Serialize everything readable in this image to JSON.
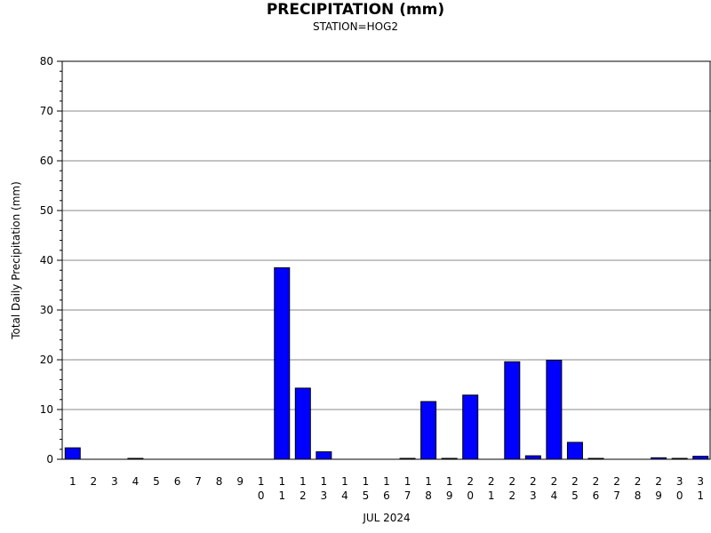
{
  "chart_data": {
    "type": "bar",
    "title": "PRECIPITATION (mm)",
    "subtitle": "STATION=HOG2",
    "xlabel": "JUL 2024",
    "ylabel": "Total Daily Precipitation (mm)",
    "ylim": [
      0,
      80
    ],
    "yticks": [
      0,
      10,
      20,
      30,
      40,
      50,
      60,
      70,
      80
    ],
    "grid": true,
    "bar_color": "#0000ff",
    "categories": [
      "1",
      "2",
      "3",
      "4",
      "5",
      "6",
      "7",
      "8",
      "9",
      "10",
      "11",
      "12",
      "13",
      "14",
      "15",
      "16",
      "17",
      "18",
      "19",
      "20",
      "21",
      "22",
      "23",
      "24",
      "25",
      "26",
      "27",
      "28",
      "29",
      "30",
      "31"
    ],
    "values": [
      2.3,
      0,
      0,
      0.1,
      0,
      0,
      0,
      0,
      0,
      0,
      38.5,
      14.3,
      1.5,
      0,
      0,
      0,
      0.1,
      11.6,
      0.1,
      12.9,
      0,
      19.6,
      0.7,
      19.9,
      3.4,
      0.1,
      0,
      0,
      0.3,
      0.1,
      0.6
    ]
  }
}
